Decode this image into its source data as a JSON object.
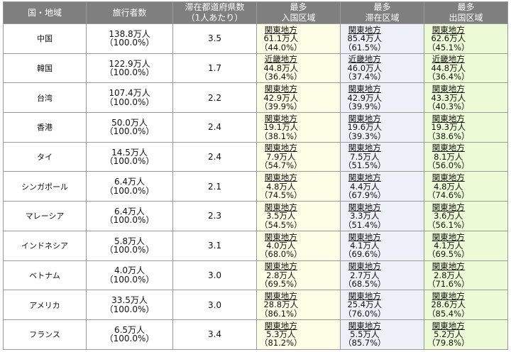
{
  "table": {
    "headers": {
      "country": "国・地域",
      "travelers": "旅行者数",
      "prefectures_line1": "滞在都道府県数",
      "prefectures_line2": "（1人あたり）",
      "entry_line1": "最多",
      "entry_line2": "入国区域",
      "stay_line1": "最多",
      "stay_line2": "滞在区域",
      "exit_line1": "最多",
      "exit_line2": "出国区域"
    },
    "rows": [
      {
        "country": "中国",
        "travelers": "138.8万人",
        "travelers_pct": "（100.0%）",
        "prefectures": "3.5",
        "entry": {
          "region": "関東地方",
          "value": "61.1万人",
          "pct": "（44.0%）"
        },
        "stay": {
          "region": "関東地方",
          "value": "85.4万人",
          "pct": "（61.5%）"
        },
        "exit": {
          "region": "関東地方",
          "value": "62.6万人",
          "pct": "（45.1%）"
        }
      },
      {
        "country": "韓国",
        "travelers": "122.9万人",
        "travelers_pct": "（100.0%）",
        "prefectures": "1.7",
        "entry": {
          "region": "近畿地方",
          "value": "44.8万人",
          "pct": "（36.4%）"
        },
        "stay": {
          "region": "近畿地方",
          "value": "46.0万人",
          "pct": "（37.4%）"
        },
        "exit": {
          "region": "近畿地方",
          "value": "44.8万人",
          "pct": "（36.4%）"
        }
      },
      {
        "country": "台湾",
        "travelers": "107.4万人",
        "travelers_pct": "（100.0%）",
        "prefectures": "2.2",
        "entry": {
          "region": "関東地方",
          "value": "42.9万人",
          "pct": "（39.9%）"
        },
        "stay": {
          "region": "関東地方",
          "value": "42.9万人",
          "pct": "（39.9%）"
        },
        "exit": {
          "region": "関東地方",
          "value": "43.3万人",
          "pct": "（40.3%）"
        }
      },
      {
        "country": "香港",
        "travelers": "50.0万人",
        "travelers_pct": "（100.0%）",
        "prefectures": "2.4",
        "entry": {
          "region": "関東地方",
          "value": "19.1万人",
          "pct": "（38.1%）"
        },
        "stay": {
          "region": "関東地方",
          "value": "19.6万人",
          "pct": "（39.3%）"
        },
        "exit": {
          "region": "関東地方",
          "value": "19.3万人",
          "pct": "（38.6%）"
        }
      },
      {
        "country": "タイ",
        "travelers": "14.5万人",
        "travelers_pct": "（100.0%）",
        "prefectures": "2.4",
        "entry": {
          "region": "関東地方",
          "value": "7.9万人",
          "pct": "（54.7%）"
        },
        "stay": {
          "region": "関東地方",
          "value": "7.5万人",
          "pct": "（51.5%）"
        },
        "exit": {
          "region": "関東地方",
          "value": "8.1万人",
          "pct": "（56.0%）"
        }
      },
      {
        "country": "シンガポール",
        "travelers": "6.4万人",
        "travelers_pct": "（100.0%）",
        "prefectures": "2.1",
        "entry": {
          "region": "関東地方",
          "value": "4.8万人",
          "pct": "（74.5%）"
        },
        "stay": {
          "region": "関東地方",
          "value": "4.4万人",
          "pct": "（67.9%）"
        },
        "exit": {
          "region": "関東地方",
          "value": "4.8万人",
          "pct": "（74.6%）"
        }
      },
      {
        "country": "マレーシア",
        "travelers": "6.4万人",
        "travelers_pct": "（100.0%）",
        "prefectures": "2.3",
        "entry": {
          "region": "関東地方",
          "value": "3.5万人",
          "pct": "（54.5%）"
        },
        "stay": {
          "region": "関東地方",
          "value": "3.3万人",
          "pct": "（51.4%）"
        },
        "exit": {
          "region": "関東地方",
          "value": "3.6万人",
          "pct": "（56.1%）"
        }
      },
      {
        "country": "インドネシア",
        "travelers": "5.8万人",
        "travelers_pct": "（100.0%）",
        "prefectures": "3.1",
        "entry": {
          "region": "関東地方",
          "value": "4.0万人",
          "pct": "（68.0%）"
        },
        "stay": {
          "region": "関東地方",
          "value": "4.1万人",
          "pct": "（69.6%）"
        },
        "exit": {
          "region": "関東地方",
          "value": "4.1万人",
          "pct": "（69.5%）"
        }
      },
      {
        "country": "ベトナム",
        "travelers": "4.0万人",
        "travelers_pct": "（100.0%）",
        "prefectures": "3.0",
        "entry": {
          "region": "関東地方",
          "value": "2.8万人",
          "pct": "（69.5%）"
        },
        "stay": {
          "region": "関東地方",
          "value": "2.7万人",
          "pct": "（68.5%）"
        },
        "exit": {
          "region": "関東地方",
          "value": "2.8万人",
          "pct": "（71.6%）"
        }
      },
      {
        "country": "アメリカ",
        "travelers": "33.5万人",
        "travelers_pct": "（100.0%）",
        "prefectures": "3.0",
        "entry": {
          "region": "関東地方",
          "value": "28.8万人",
          "pct": "（86.1%）"
        },
        "stay": {
          "region": "関東地方",
          "value": "25.4万人",
          "pct": "（76.0%）"
        },
        "exit": {
          "region": "関東地方",
          "value": "28.6万人",
          "pct": "（85.4%）"
        }
      },
      {
        "country": "フランス",
        "travelers": "6.5万人",
        "travelers_pct": "（100.0%）",
        "prefectures": "3.4",
        "entry": {
          "region": "関東地方",
          "value": "5.3万人",
          "pct": "（81.2%）"
        },
        "stay": {
          "region": "関東地方",
          "value": "5.5万人",
          "pct": "（85.7%）"
        },
        "exit": {
          "region": "関東地方",
          "value": "5.2万人",
          "pct": "（79.8%）"
        }
      }
    ]
  }
}
